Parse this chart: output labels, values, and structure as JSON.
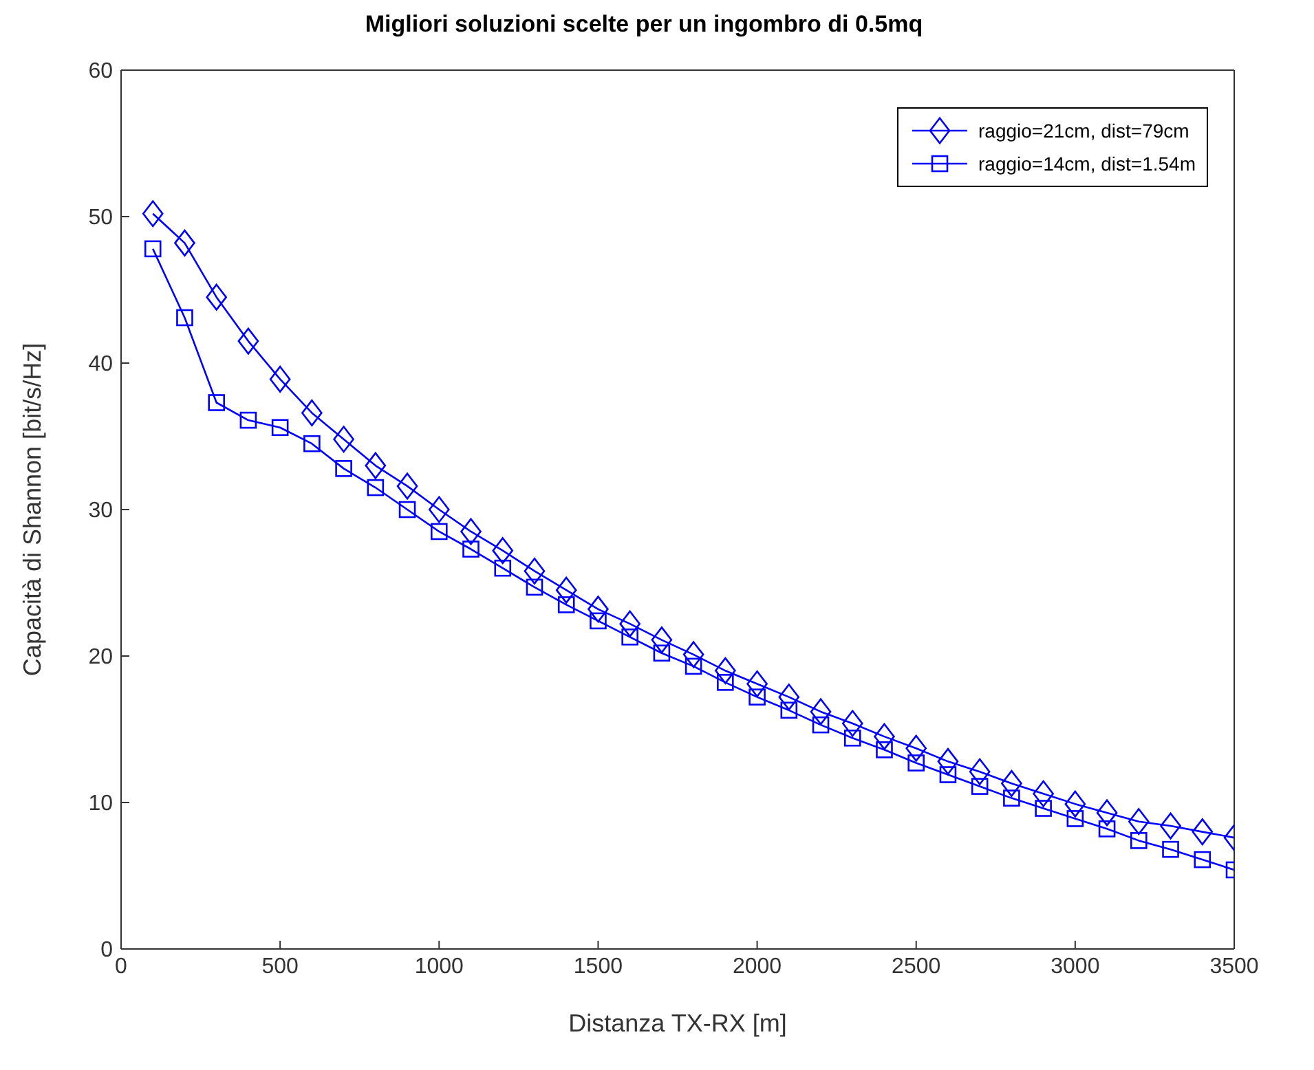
{
  "chart_data": {
    "type": "line",
    "title": "Migliori soluzioni scelte per un ingombro di 0.5mq",
    "xlabel": "Distanza TX-RX [m]",
    "ylabel": "Capacità di Shannon [bit/s/Hz]",
    "x": [
      100,
      200,
      300,
      400,
      500,
      600,
      700,
      800,
      900,
      1000,
      1100,
      1200,
      1300,
      1400,
      1500,
      1600,
      1700,
      1800,
      1900,
      2000,
      2100,
      2200,
      2300,
      2400,
      2500,
      2600,
      2700,
      2800,
      2900,
      3000,
      3100,
      3200,
      3300,
      3400,
      3500
    ],
    "series": [
      {
        "name": "raggio=21cm, dist=79cm",
        "color": "#0000ff",
        "marker": "diamond",
        "values": [
          50.2,
          48.2,
          44.5,
          41.5,
          38.9,
          36.6,
          34.8,
          33.0,
          31.6,
          30.0,
          28.5,
          27.2,
          25.8,
          24.5,
          23.2,
          22.2,
          21.1,
          20.1,
          19.0,
          18.1,
          17.2,
          16.2,
          15.4,
          14.5,
          13.7,
          12.8,
          12.1,
          11.3,
          10.6,
          9.9,
          9.3,
          8.7,
          8.4,
          8.0,
          7.6
        ]
      },
      {
        "name": "raggio=14cm, dist=1.54m",
        "color": "#0000ff",
        "marker": "square",
        "values": [
          47.8,
          43.1,
          37.3,
          36.1,
          35.6,
          34.5,
          32.8,
          31.5,
          30.0,
          28.5,
          27.3,
          26.0,
          24.7,
          23.5,
          22.4,
          21.3,
          20.2,
          19.3,
          18.2,
          17.2,
          16.3,
          15.3,
          14.4,
          13.6,
          12.7,
          11.9,
          11.1,
          10.3,
          9.6,
          8.9,
          8.2,
          7.4,
          6.8,
          6.1,
          5.4
        ]
      }
    ],
    "xlim": [
      0,
      3500
    ],
    "xticks": [
      0,
      500,
      1000,
      1500,
      2000,
      2500,
      3000,
      3500
    ],
    "ylim": [
      0,
      60
    ],
    "yticks": [
      0,
      10,
      20,
      30,
      40,
      50,
      60
    ],
    "grid": false,
    "legend": "top right",
    "line_style": "solid"
  }
}
